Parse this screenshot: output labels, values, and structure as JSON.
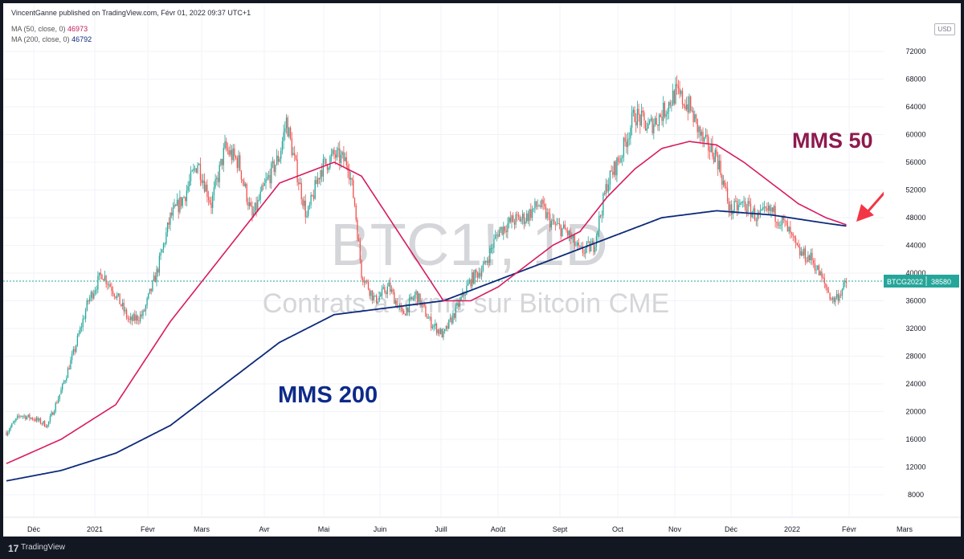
{
  "header": {
    "publisher": "VincentGanne published on TradingView.com, Févr 01, 2022 09:37 UTC+1",
    "ma50_label": "MA (50, close, 0)",
    "ma50_value": "46973",
    "ma200_label": "MA (200, close, 0)",
    "ma200_value": "46792",
    "unit": "USD"
  },
  "footer": {
    "logo_glyph": "17",
    "brand": "TradingView"
  },
  "colors": {
    "up": "#26a69a",
    "down": "#ef5350",
    "ma50": "#d81b60",
    "ma200": "#0d2a7a",
    "arrow": "#f23645",
    "ma50_text": "#8e1a4e",
    "ma200_text": "#0d2a8a"
  },
  "chart_data": {
    "type": "candlestick",
    "watermark_symbol": "BTC1!, 1D",
    "watermark_name": "Contrats à terme sur Bitcoin CME",
    "y_ticks": [
      8000,
      12000,
      16000,
      20000,
      24000,
      28000,
      32000,
      36000,
      40000,
      44000,
      48000,
      52000,
      56000,
      60000,
      64000,
      68000,
      72000
    ],
    "ylim": [
      4000,
      76000
    ],
    "x_ticks": [
      "Déc",
      "2021",
      "Févr",
      "Mars",
      "Avr",
      "Mai",
      "Juin",
      "Juill",
      "Août",
      "Sept",
      "Oct",
      "Nov",
      "Déc",
      "2022",
      "Févr",
      "Mars"
    ],
    "last_price_label": "BTCG2022",
    "last_price": 38580,
    "price_anchors": [
      [
        0,
        17000
      ],
      [
        10,
        19500
      ],
      [
        20,
        19000
      ],
      [
        30,
        18000
      ],
      [
        40,
        23000
      ],
      [
        50,
        29000
      ],
      [
        60,
        36000
      ],
      [
        70,
        40000
      ],
      [
        80,
        37000
      ],
      [
        90,
        33000
      ],
      [
        100,
        34000
      ],
      [
        110,
        40000
      ],
      [
        120,
        48000
      ],
      [
        130,
        51000
      ],
      [
        140,
        56000
      ],
      [
        150,
        50000
      ],
      [
        160,
        58000
      ],
      [
        170,
        56000
      ],
      [
        180,
        48000
      ],
      [
        190,
        53000
      ],
      [
        200,
        57000
      ],
      [
        205,
        62000
      ],
      [
        210,
        57000
      ],
      [
        220,
        48000
      ],
      [
        230,
        55000
      ],
      [
        240,
        57000
      ],
      [
        250,
        56000
      ],
      [
        255,
        50000
      ],
      [
        260,
        40000
      ],
      [
        270,
        36000
      ],
      [
        280,
        38000
      ],
      [
        290,
        34000
      ],
      [
        300,
        37000
      ],
      [
        310,
        33000
      ],
      [
        320,
        31000
      ],
      [
        330,
        35000
      ],
      [
        340,
        39000
      ],
      [
        350,
        41000
      ],
      [
        360,
        46000
      ],
      [
        370,
        47500
      ],
      [
        380,
        48000
      ],
      [
        390,
        50000
      ],
      [
        400,
        47000
      ],
      [
        410,
        46000
      ],
      [
        420,
        43000
      ],
      [
        430,
        44000
      ],
      [
        440,
        53000
      ],
      [
        450,
        57000
      ],
      [
        460,
        63000
      ],
      [
        470,
        61000
      ],
      [
        480,
        63000
      ],
      [
        490,
        66000
      ],
      [
        500,
        64000
      ],
      [
        510,
        59000
      ],
      [
        520,
        57000
      ],
      [
        530,
        49000
      ],
      [
        540,
        50000
      ],
      [
        550,
        48000
      ],
      [
        560,
        49000
      ],
      [
        570,
        47000
      ],
      [
        580,
        43000
      ],
      [
        590,
        42000
      ],
      [
        600,
        38000
      ],
      [
        605,
        36000
      ],
      [
        610,
        37000
      ],
      [
        615,
        38580
      ]
    ],
    "ma200_anchors": [
      [
        0,
        10000
      ],
      [
        40,
        11500
      ],
      [
        80,
        14000
      ],
      [
        120,
        18000
      ],
      [
        160,
        24000
      ],
      [
        200,
        30000
      ],
      [
        240,
        34000
      ],
      [
        280,
        35000
      ],
      [
        320,
        36000
      ],
      [
        360,
        39000
      ],
      [
        400,
        42000
      ],
      [
        440,
        45000
      ],
      [
        480,
        48000
      ],
      [
        520,
        49000
      ],
      [
        560,
        48400
      ],
      [
        600,
        47200
      ],
      [
        615,
        46792
      ]
    ],
    "ma50_anchors": [
      [
        0,
        12500
      ],
      [
        40,
        16000
      ],
      [
        80,
        21000
      ],
      [
        120,
        33000
      ],
      [
        160,
        43000
      ],
      [
        200,
        53000
      ],
      [
        240,
        56000
      ],
      [
        260,
        54000
      ],
      [
        280,
        48000
      ],
      [
        300,
        42000
      ],
      [
        320,
        36000
      ],
      [
        340,
        36000
      ],
      [
        360,
        38000
      ],
      [
        380,
        41000
      ],
      [
        400,
        44000
      ],
      [
        420,
        46000
      ],
      [
        440,
        51000
      ],
      [
        460,
        55000
      ],
      [
        480,
        58000
      ],
      [
        500,
        59000
      ],
      [
        520,
        58500
      ],
      [
        540,
        56000
      ],
      [
        560,
        53000
      ],
      [
        580,
        50000
      ],
      [
        600,
        48000
      ],
      [
        615,
        46973
      ]
    ],
    "annotations": [
      {
        "text": "MMS 50",
        "color": "#8e1a4e"
      },
      {
        "text": "MMS 200",
        "color": "#0d2a8a"
      }
    ]
  }
}
